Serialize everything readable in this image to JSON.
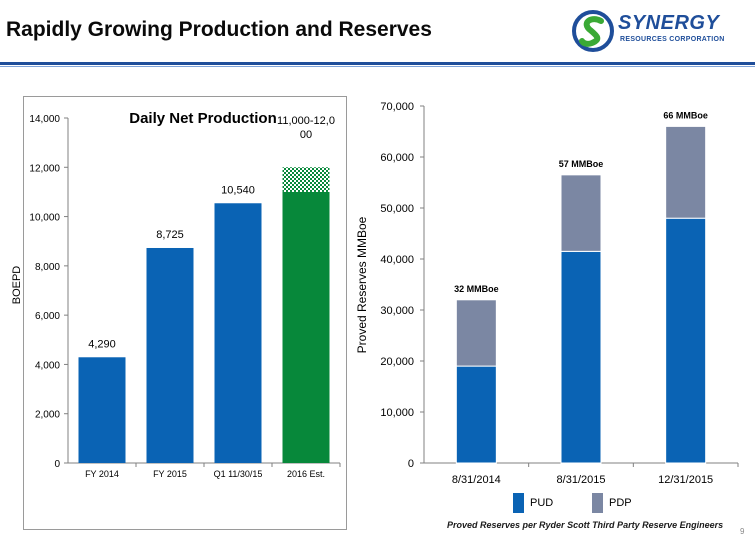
{
  "header": {
    "title": "Rapidly Growing Production and Reserves",
    "logo_name": "SYNERGY",
    "logo_sub": "RESOURCES CORPORATION",
    "logo_icon": "swirl-s-logo"
  },
  "colors": {
    "blue": "#0a63b4",
    "green": "#07883a",
    "gray": "#7b87a3",
    "brand": "#1f4e9a"
  },
  "footnote": "Proved Reserves per Ryder Scott Third Party Reserve Engineers",
  "page_number": "9",
  "chart_data": [
    {
      "type": "bar",
      "title": "Daily Net Production",
      "ylabel": "BOEPD",
      "xlabel": "",
      "categories": [
        "FY 2014",
        "FY 2015",
        "Q1 11/30/15",
        "2016 Est."
      ],
      "values": [
        4290,
        8725,
        10540,
        11000
      ],
      "estimate_range": [
        11000,
        12000
      ],
      "data_labels": [
        "4,290",
        "8,725",
        "10,540",
        "11,000-12,000"
      ],
      "ylim": [
        0,
        14000
      ],
      "yticks": [
        0,
        2000,
        4000,
        6000,
        8000,
        10000,
        12000,
        14000
      ],
      "ytick_labels": [
        "0",
        "2,000",
        "4,000",
        "6,000",
        "8,000",
        "10,000",
        "12,000",
        "14,000"
      ],
      "grid": false
    },
    {
      "type": "bar",
      "stacked": true,
      "title": "",
      "ylabel": "Proved Reserves MMBoe",
      "xlabel": "",
      "categories": [
        "8/31/2014",
        "8/31/2015",
        "12/31/2015"
      ],
      "series": [
        {
          "name": "PUD",
          "values": [
            19000,
            41500,
            48000
          ]
        },
        {
          "name": "PDP",
          "values": [
            13000,
            15000,
            18000
          ]
        }
      ],
      "total_labels": [
        "32 MMBoe",
        "57 MMBoe",
        "66 MMBoe"
      ],
      "ylim": [
        0,
        70000
      ],
      "yticks": [
        0,
        10000,
        20000,
        30000,
        40000,
        50000,
        60000,
        70000
      ],
      "ytick_labels": [
        "0",
        "10,000",
        "20,000",
        "30,000",
        "40,000",
        "50,000",
        "60,000",
        "70,000"
      ],
      "legend": "bottom",
      "grid": false
    }
  ]
}
